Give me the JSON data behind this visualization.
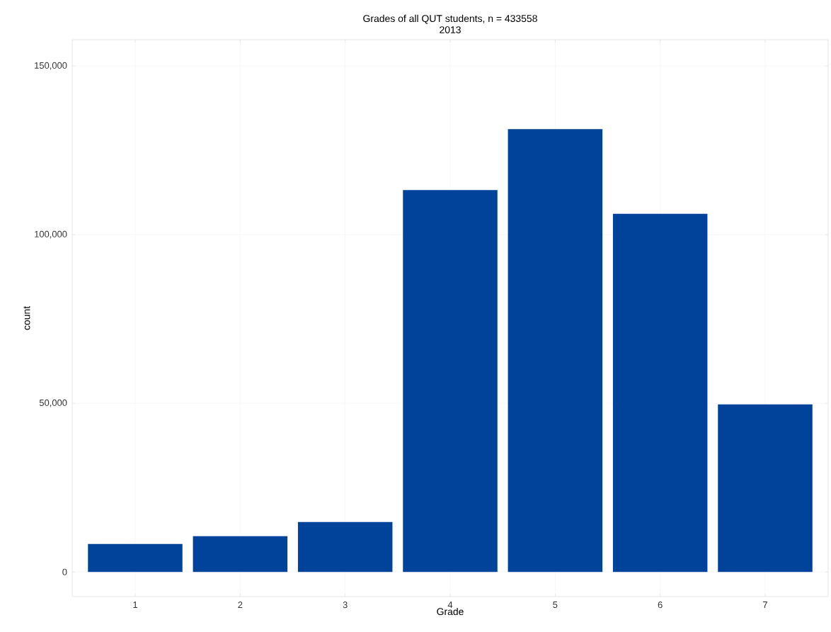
{
  "chart_data": {
    "type": "bar",
    "title": "Grades of all QUT students, n = 433558",
    "subtitle": "2013",
    "xlabel": "Grade",
    "ylabel": "count",
    "categories": [
      "1",
      "2",
      "3",
      "4",
      "5",
      "6",
      "7"
    ],
    "values": [
      8300,
      10600,
      14800,
      113200,
      131300,
      106200,
      49700
    ],
    "color": "#00439a",
    "ylim": [
      -7300,
      157800
    ],
    "yticks": [
      {
        "value": 0,
        "label": "0"
      },
      {
        "value": 50000,
        "label": "50,000"
      },
      {
        "value": 100000,
        "label": "100,000"
      },
      {
        "value": 150000,
        "label": "150,000"
      }
    ],
    "grid": true
  }
}
